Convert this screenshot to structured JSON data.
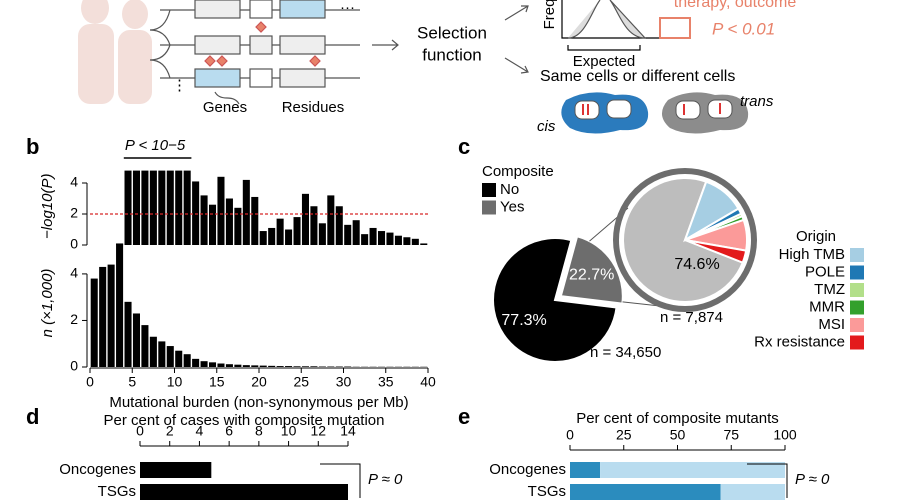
{
  "panel_a": {
    "selection_line1": "Selection",
    "selection_line2": "function",
    "freq": "Freq",
    "expected": "Expected",
    "therapy": "therapy, outcome",
    "p_threshold": "P < 0.01",
    "same_cells": "Same cells or different cells",
    "cis": "cis",
    "trans": "trans",
    "genes": "Genes",
    "residues": "Residues",
    "ellipsis": "···",
    "ellipsis_v": "⋮"
  },
  "panel_labels": {
    "b": "b",
    "c": "c",
    "d": "d",
    "e": "e"
  },
  "chart_data": [
    {
      "type": "histogram",
      "ylabel": "−log10(P)",
      "annotation": "P < 10−5",
      "bins": [
        0,
        1,
        2,
        3,
        4,
        5,
        6,
        7,
        8,
        9,
        10,
        11,
        12,
        13,
        14,
        15,
        16,
        17,
        18,
        19,
        20,
        21,
        22,
        23,
        24,
        25,
        26,
        27,
        28,
        29,
        30,
        31,
        32,
        33,
        34,
        35,
        36,
        37,
        38,
        39,
        40
      ],
      "values": [
        null,
        null,
        null,
        0.1,
        4.8,
        4.8,
        4.8,
        4.8,
        4.8,
        4.8,
        4.8,
        4.8,
        4.1,
        3.2,
        2.6,
        4.4,
        3.0,
        2.4,
        4.2,
        3.1,
        0.9,
        1.1,
        1.7,
        1.0,
        1.8,
        3.3,
        2.5,
        1.4,
        3.2,
        2.5,
        1.3,
        1.6,
        0.7,
        1.1,
        0.9,
        0.8,
        0.6,
        0.5,
        0.4,
        0.1
      ],
      "color": "#000000",
      "xlim": [
        0,
        40
      ],
      "ylim": [
        0,
        5
      ],
      "yticks": [
        0,
        2,
        4
      ],
      "threshold": 2,
      "threshold_color": "#d62728"
    },
    {
      "type": "histogram",
      "ylabel": "n (×1,000)",
      "xlabel": "Mutational burden (non-synonymous per Mb)",
      "bins": [
        0,
        1,
        2,
        3,
        4,
        5,
        6,
        7,
        8,
        9,
        10,
        11,
        12,
        13,
        14,
        15,
        16,
        17,
        18,
        19,
        20,
        21,
        22,
        23,
        24,
        25,
        26,
        27,
        28,
        29,
        30,
        31,
        32,
        33,
        34,
        35,
        36,
        37,
        38,
        39,
        40
      ],
      "values": [
        3.8,
        4.3,
        4.4,
        5.3,
        2.8,
        2.3,
        1.8,
        1.3,
        1.1,
        0.9,
        0.7,
        0.55,
        0.35,
        0.25,
        0.2,
        0.15,
        0.12,
        0.1,
        0.08,
        0.07,
        0.06,
        0.05,
        0.04,
        0.04,
        0.03,
        0.03,
        0.03,
        0.02,
        0.02,
        0.02,
        0.02,
        0.01,
        0.01,
        0.01,
        0.01,
        0.01,
        0.01,
        0.01,
        0.01,
        0.01
      ],
      "color": "#000000",
      "xlim": [
        0,
        40
      ],
      "ylim": [
        0,
        5.5
      ],
      "xticks": [
        0,
        5,
        10,
        15,
        20,
        25,
        30,
        35,
        40
      ],
      "yticks": [
        0,
        2,
        4
      ]
    },
    {
      "type": "pie",
      "legend_title": "Composite",
      "annotation": "n = 34,650",
      "categories": [
        "No",
        "Yes"
      ],
      "values": [
        77.3,
        22.7
      ],
      "value_labels": [
        "77.3%",
        "22.7%"
      ],
      "colors": [
        "#000000",
        "#6d6d6d"
      ]
    },
    {
      "type": "pie",
      "legend_title": "Origin",
      "annotation": "n = 7,874",
      "categories": [
        null,
        "High TMB",
        "POLE",
        "TMZ",
        "MMR",
        "MSI",
        "Rx resistance"
      ],
      "values": [
        74.6,
        11,
        1.5,
        0.7,
        1,
        8,
        3.2
      ],
      "value_labels": [
        "74.6%",
        null,
        null,
        null,
        null,
        null,
        null
      ],
      "colors": [
        "#bdbdbd",
        "#a6cee3",
        "#1f78b4",
        "#b2df8a",
        "#33a02c",
        "#fb9a99",
        "#e31a1c"
      ]
    },
    {
      "type": "hbar",
      "title": "Per cent of cases with composite mutation",
      "annotation": "P ≈ 0",
      "categories": [
        "Oncogenes",
        "TSGs"
      ],
      "values": [
        4.8,
        14
      ],
      "color": "#000000",
      "xlim": [
        0,
        14
      ],
      "xticks": [
        0,
        2,
        4,
        6,
        8,
        10,
        12,
        14
      ]
    },
    {
      "type": "stacked_hbar",
      "title": "Per cent of composite mutants",
      "annotation": "P ≈ 0",
      "categories": [
        "Oncogenes",
        "TSGs"
      ],
      "series": [
        {
          "color": "#2b8cbe",
          "values": [
            14,
            70
          ]
        },
        {
          "color": "#b9dcef",
          "values": [
            86,
            30
          ]
        }
      ],
      "xlim": [
        0,
        100
      ],
      "xticks": [
        0,
        25,
        50,
        75,
        100
      ]
    }
  ]
}
